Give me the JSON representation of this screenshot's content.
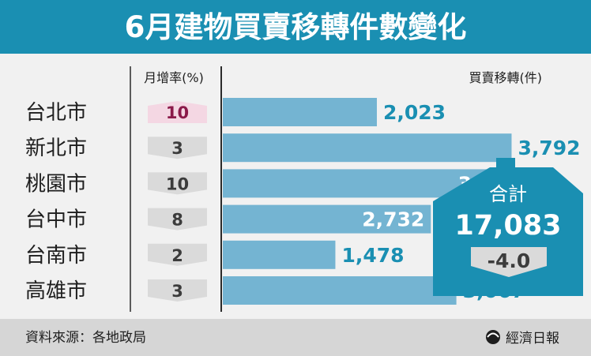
{
  "title": "6月建物買賣移轉件數變化",
  "headers": {
    "growth": "月增率(%)",
    "transfers": "買賣移轉(件)"
  },
  "chart_data": {
    "type": "bar",
    "orientation": "horizontal",
    "categories": [
      "台北市",
      "新北市",
      "桃園市",
      "台中市",
      "台南市",
      "高雄市"
    ],
    "series": [
      {
        "name": "買賣移轉(件)",
        "values": [
          2023,
          3792,
          3991,
          2732,
          1478,
          3067
        ]
      },
      {
        "name": "月增率(%)",
        "values": [
          10,
          3,
          10,
          8,
          2,
          3
        ]
      }
    ],
    "growth_labels": [
      "10",
      "3",
      "10",
      "8",
      "2",
      "3"
    ],
    "value_labels": [
      "2,023",
      "3,792",
      "3,991",
      "2,732",
      "1,478",
      "3,067"
    ],
    "xlim": [
      0,
      4700
    ]
  },
  "total": {
    "label": "合計",
    "value": "17,083",
    "change": "-4.0"
  },
  "footer": {
    "source": "資料來源：各地政局",
    "publisher": "經濟日報"
  },
  "colors": {
    "title_bg": "#1a8fb2",
    "bar": "#74b4d2",
    "value_text": "#1a8fb2",
    "house": "#1a8fb2",
    "growth_up_fill": "#f4d7e3",
    "growth_up_text": "#8b1a4a",
    "growth_fill": "#dadada",
    "growth_text": "#3c3c3c",
    "panel_bg": "#f1f1f1",
    "footer_bg": "#d6d6d6",
    "divider": "#2b2b2b"
  }
}
